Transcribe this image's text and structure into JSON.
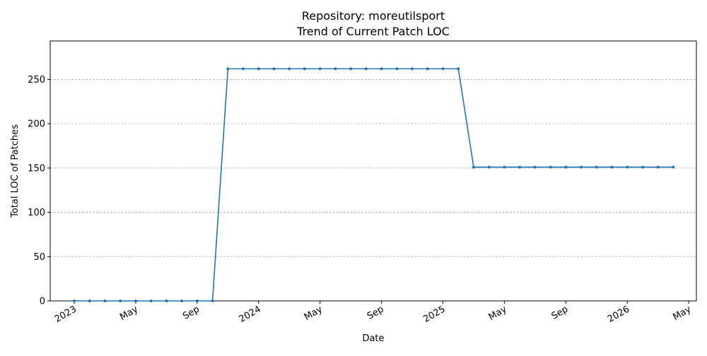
{
  "chart_data": {
    "type": "line",
    "title": "Repository: moreutilsport",
    "subtitle": "Trend of Current Patch LOC",
    "xlabel": "Date",
    "ylabel": "Total LOC of Patches",
    "x": [
      "2023-01",
      "2023-02",
      "2023-03",
      "2023-04",
      "2023-05",
      "2023-06",
      "2023-07",
      "2023-08",
      "2023-09",
      "2023-10",
      "2023-11",
      "2023-12",
      "2024-01",
      "2024-02",
      "2024-03",
      "2024-04",
      "2024-05",
      "2024-06",
      "2024-07",
      "2024-08",
      "2024-09",
      "2024-10",
      "2024-11",
      "2024-12",
      "2025-01",
      "2025-02",
      "2025-03",
      "2025-04",
      "2025-05",
      "2025-06",
      "2025-07",
      "2025-08",
      "2025-09",
      "2025-10",
      "2025-11",
      "2025-12",
      "2026-01",
      "2026-02",
      "2026-03",
      "2026-04"
    ],
    "series": [
      {
        "name": "Total LOC",
        "color": "#1f77b4",
        "values": [
          0,
          0,
          0,
          0,
          0,
          0,
          0,
          0,
          0,
          0,
          262,
          262,
          262,
          262,
          262,
          262,
          262,
          262,
          262,
          262,
          262,
          262,
          262,
          262,
          262,
          262,
          151,
          151,
          151,
          151,
          151,
          151,
          151,
          151,
          151,
          151,
          151,
          151,
          151,
          151
        ]
      }
    ],
    "xlim": [
      "2022-11-14",
      "2026-05-16"
    ],
    "xticks": [
      {
        "value": "2023-01",
        "label": "2023"
      },
      {
        "value": "2023-05",
        "label": "May"
      },
      {
        "value": "2023-09",
        "label": "Sep"
      },
      {
        "value": "2024-01",
        "label": "2024"
      },
      {
        "value": "2024-05",
        "label": "May"
      },
      {
        "value": "2024-09",
        "label": "Sep"
      },
      {
        "value": "2025-01",
        "label": "2025"
      },
      {
        "value": "2025-05",
        "label": "May"
      },
      {
        "value": "2025-09",
        "label": "Sep"
      },
      {
        "value": "2026-01",
        "label": "2026"
      },
      {
        "value": "2026-05",
        "label": "May"
      }
    ],
    "ylim": [
      0,
      293.4
    ],
    "yticks": [
      0,
      50,
      100,
      150,
      200,
      250
    ],
    "grid": true
  }
}
